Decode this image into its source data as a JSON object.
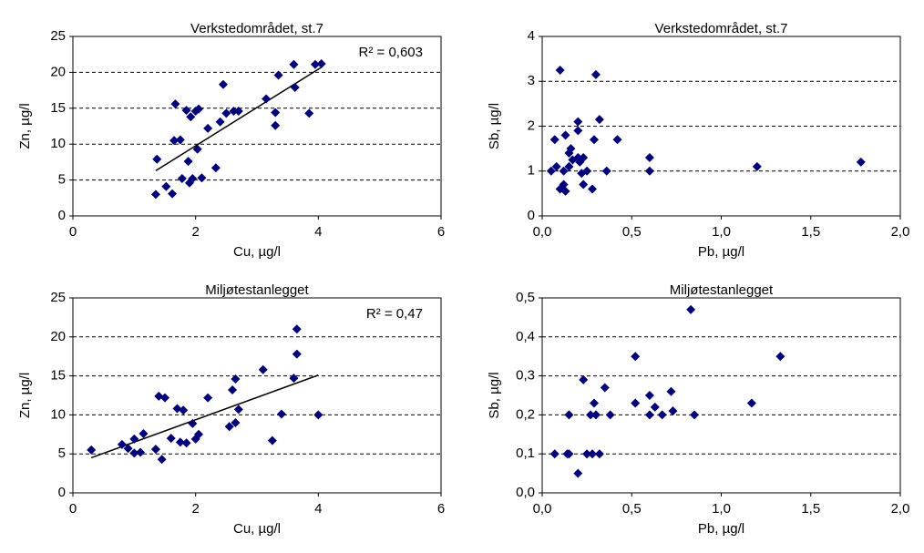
{
  "chart_data": [
    {
      "type": "scatter",
      "title": "Verkstedområdet, st.7",
      "xlabel": "Cu, µg/l",
      "ylabel": "Zn, µg/l",
      "color": "#000080",
      "grid": true,
      "xlim": [
        0,
        6
      ],
      "xticks": [
        0,
        2,
        4,
        6
      ],
      "ylim": [
        0,
        25
      ],
      "yticks": [
        0,
        5,
        10,
        15,
        20,
        25
      ],
      "x": [
        1.35,
        1.37,
        1.52,
        1.62,
        1.65,
        1.67,
        1.75,
        1.78,
        1.85,
        1.88,
        1.9,
        1.92,
        1.95,
        2.0,
        2.03,
        2.05,
        2.1,
        2.2,
        2.33,
        2.4,
        2.45,
        2.5,
        2.62,
        2.7,
        3.15,
        3.3,
        3.3,
        3.35,
        3.6,
        3.62,
        3.85,
        3.95,
        4.05
      ],
      "values": [
        3.0,
        7.9,
        4.1,
        3.1,
        10.5,
        15.6,
        10.6,
        5.2,
        14.7,
        7.6,
        4.6,
        13.8,
        5.2,
        14.6,
        9.3,
        14.9,
        5.3,
        12.2,
        6.7,
        13.1,
        18.3,
        14.3,
        14.6,
        14.6,
        16.3,
        12.6,
        14.4,
        19.6,
        21.1,
        17.9,
        14.3,
        21.1,
        21.2
      ],
      "trendline": {
        "x": [
          1.35,
          4.05
        ],
        "y": [
          6.3,
          20.7
        ]
      },
      "annotation": "R² = 0,603"
    },
    {
      "type": "scatter",
      "title": "Verkstedområdet, st.7",
      "xlabel": "Pb, µg/l",
      "ylabel": "Sb, µg/l",
      "color": "#000080",
      "grid": true,
      "xlim": [
        0,
        2
      ],
      "xticks": [
        {
          "value": 0,
          "label": "0,0"
        },
        {
          "value": 0.5,
          "label": "0,5"
        },
        {
          "value": 1,
          "label": "1,0"
        },
        {
          "value": 1.5,
          "label": "1,5"
        },
        {
          "value": 2,
          "label": "2,0"
        }
      ],
      "ylim": [
        0,
        4
      ],
      "yticks": [
        0,
        1,
        2,
        3,
        4
      ],
      "x": [
        0.05,
        0.07,
        0.08,
        0.1,
        0.1,
        0.12,
        0.12,
        0.13,
        0.13,
        0.15,
        0.15,
        0.16,
        0.17,
        0.2,
        0.2,
        0.2,
        0.21,
        0.22,
        0.23,
        0.23,
        0.25,
        0.28,
        0.3,
        0.29,
        0.32,
        0.36,
        0.42,
        0.6,
        0.6,
        1.2,
        1.78
      ],
      "values": [
        1.0,
        1.7,
        1.1,
        3.25,
        0.6,
        0.7,
        1.0,
        1.8,
        0.55,
        1.1,
        1.4,
        1.5,
        1.25,
        2.1,
        1.9,
        1.3,
        1.2,
        0.95,
        1.3,
        0.7,
        1.0,
        0.6,
        3.15,
        1.7,
        2.15,
        1.0,
        1.7,
        1.3,
        1.0,
        1.1,
        1.2
      ]
    },
    {
      "type": "scatter",
      "title": "Miljøtestanlegget",
      "xlabel": "Cu, µg/l",
      "ylabel": "Zn, µg/l",
      "color": "#000080",
      "grid": true,
      "xlim": [
        0,
        6
      ],
      "xticks": [
        0,
        2,
        4,
        6
      ],
      "ylim": [
        0,
        25
      ],
      "yticks": [
        0,
        5,
        10,
        15,
        20,
        25
      ],
      "x": [
        0.3,
        0.8,
        0.9,
        1.0,
        1.0,
        1.1,
        1.15,
        1.35,
        1.4,
        1.45,
        1.5,
        1.6,
        1.7,
        1.75,
        1.8,
        1.85,
        1.95,
        2.0,
        2.05,
        2.2,
        2.55,
        2.6,
        2.65,
        2.65,
        2.7,
        3.1,
        3.25,
        3.4,
        3.6,
        3.65,
        3.65,
        4.0
      ],
      "values": [
        5.5,
        6.2,
        5.7,
        6.9,
        5.1,
        5.2,
        7.6,
        5.6,
        12.4,
        4.3,
        12.2,
        7.0,
        10.8,
        6.5,
        10.6,
        6.4,
        8.9,
        6.9,
        7.5,
        12.2,
        8.5,
        13.2,
        9.0,
        14.6,
        10.7,
        15.8,
        6.7,
        10.1,
        14.7,
        17.8,
        21.0,
        10.0
      ],
      "trendline": {
        "x": [
          0.3,
          4.0
        ],
        "y": [
          4.5,
          15.1
        ]
      },
      "annotation": "R² = 0,47"
    },
    {
      "type": "scatter",
      "title": "Miljøtestanlegget",
      "xlabel": "Pb, µg/l",
      "ylabel": "Sb, µg/l",
      "color": "#000080",
      "grid": true,
      "xlim": [
        0,
        2
      ],
      "xticks": [
        {
          "value": 0,
          "label": "0,0"
        },
        {
          "value": 0.5,
          "label": "0,5"
        },
        {
          "value": 1,
          "label": "1,0"
        },
        {
          "value": 1.5,
          "label": "1,5"
        },
        {
          "value": 2,
          "label": "2,0"
        }
      ],
      "ylim": [
        0,
        0.5
      ],
      "yticks": [
        {
          "value": 0,
          "label": "0,0"
        },
        {
          "value": 0.1,
          "label": "0,1"
        },
        {
          "value": 0.2,
          "label": "0,2"
        },
        {
          "value": 0.3,
          "label": "0,3"
        },
        {
          "value": 0.4,
          "label": "0,4"
        },
        {
          "value": 0.5,
          "label": "0,5"
        }
      ],
      "x": [
        0.07,
        0.14,
        0.15,
        0.15,
        0.2,
        0.23,
        0.25,
        0.27,
        0.28,
        0.29,
        0.3,
        0.32,
        0.35,
        0.38,
        0.52,
        0.52,
        0.6,
        0.6,
        0.63,
        0.67,
        0.72,
        0.73,
        0.83,
        0.85,
        1.17,
        1.33
      ],
      "values": [
        0.1,
        0.1,
        0.2,
        0.1,
        0.05,
        0.29,
        0.1,
        0.2,
        0.1,
        0.23,
        0.2,
        0.1,
        0.27,
        0.2,
        0.35,
        0.23,
        0.2,
        0.25,
        0.22,
        0.2,
        0.26,
        0.21,
        0.47,
        0.2,
        0.23,
        0.35
      ]
    }
  ]
}
